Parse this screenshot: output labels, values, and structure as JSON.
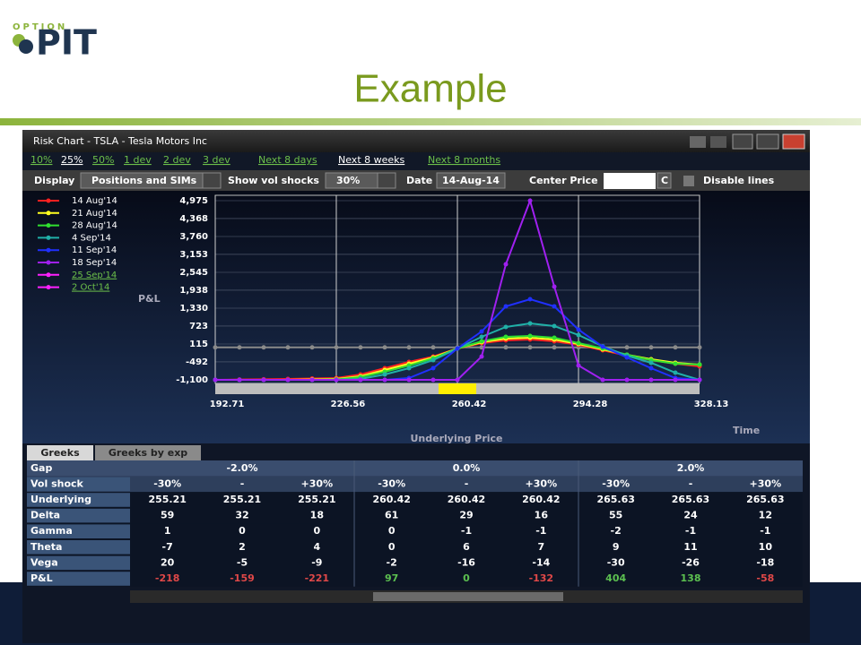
{
  "logo": {
    "small": "OPTION",
    "large": "PIT"
  },
  "slide_title": "Example",
  "window": {
    "title": "Risk Chart - TSLA - Tesla Motors Inc",
    "range_links": {
      "items": [
        "10%",
        "25%",
        "50%",
        "1 dev",
        "2 dev",
        "3 dev"
      ],
      "selected": 1
    },
    "period_links": {
      "items": [
        "Next 8 days",
        "Next 8 weeks",
        "Next 8 months"
      ],
      "selected": 1
    },
    "toolbar": {
      "display_label": "Display",
      "display_value": "Positions and SIMs",
      "vol_label": "Show vol shocks",
      "vol_value": "30%",
      "date_label": "Date",
      "date_value": "14-Aug-14",
      "center_label": "Center Price",
      "center_button": "C",
      "disable_lines": "Disable lines"
    }
  },
  "chart_data": {
    "type": "line",
    "ylabel": "P&L",
    "xlabel": "Underlying Price",
    "time_label": "Time",
    "grid": true,
    "legend": "upper left",
    "x": [
      192.71,
      199.48,
      206.25,
      213.02,
      219.8,
      226.56,
      233.33,
      240.11,
      246.88,
      253.65,
      260.42,
      267.19,
      273.96,
      280.74,
      287.51,
      294.28,
      301.05,
      307.82,
      314.59,
      321.36,
      328.13
    ],
    "xlim": [
      192.71,
      328.13
    ],
    "xticks": [
      192.71,
      226.56,
      260.42,
      294.28,
      328.13
    ],
    "ylim": [
      -1100,
      4975
    ],
    "yticks": [
      {
        "value": -1100,
        "label": "-1,100"
      },
      -492,
      115,
      723,
      {
        "value": 1330,
        "label": "1,330"
      },
      {
        "value": 1938,
        "label": "1,938"
      },
      {
        "value": 2545,
        "label": "2,545"
      },
      {
        "value": 3153,
        "label": "3,153"
      },
      {
        "value": 3760,
        "label": "3,760"
      },
      {
        "value": 4368,
        "label": "4,368"
      },
      {
        "value": 4975,
        "label": "4,975"
      }
    ],
    "series": [
      {
        "color": "#8a8a8a",
        "values": [
          0,
          0,
          0,
          0,
          0,
          0,
          0,
          0,
          0,
          0,
          0,
          0,
          0,
          0,
          0,
          0,
          0,
          0,
          0,
          0,
          0
        ]
      },
      {
        "name": "14 Aug'14",
        "color": "#ff2020",
        "values": [
          -1100,
          -1090,
          -1080,
          -1070,
          -1055,
          -1039,
          -918,
          -705,
          -493,
          -310,
          -37,
          145,
          237,
          267,
          206,
          85,
          -98,
          -280,
          -432,
          -554,
          -644
        ]
      },
      {
        "name": "21 Aug'14",
        "color": "#ffff20",
        "values": [
          -1100,
          -1100,
          -1100,
          -1100,
          -1085,
          -1070,
          -978,
          -766,
          -554,
          -340,
          -37,
          176,
          298,
          328,
          267,
          115,
          -67,
          -250,
          -401,
          -523,
          -584
        ]
      },
      {
        "name": "28 Aug'14",
        "color": "#30e030",
        "values": [
          -1100,
          -1100,
          -1100,
          -1100,
          -1100,
          -1085,
          -1009,
          -827,
          -615,
          -371,
          -37,
          206,
          359,
          389,
          328,
          145,
          -37,
          -250,
          -432,
          -554,
          -584
        ]
      },
      {
        "name": "4 Sep'14",
        "color": "#20b0a8",
        "values": [
          -1100,
          -1100,
          -1100,
          -1100,
          -1100,
          -1100,
          -1070,
          -918,
          -705,
          -432,
          -37,
          358,
          693,
          813,
          723,
          419,
          37,
          -280,
          -523,
          -857,
          -1100
        ]
      },
      {
        "name": "11 Sep'14",
        "color": "#2030ff",
        "values": [
          -1100,
          -1100,
          -1100,
          -1100,
          -1100,
          -1100,
          -1100,
          -1100,
          -1039,
          -705,
          -37,
          540,
          1390,
          1634,
          1390,
          601,
          24,
          -340,
          -705,
          -1039,
          -1100
        ]
      },
      {
        "name": "18 Sep'14",
        "color": "#a020f0",
        "values": [
          -1100,
          -1100,
          -1100,
          -1100,
          -1100,
          -1100,
          -1100,
          -1100,
          -1100,
          -1100,
          -1100,
          -310,
          2818,
          4975,
          2059,
          -614,
          -1100,
          -1100,
          -1100,
          -1100,
          -1100
        ]
      },
      {
        "name": "25 Sep'14",
        "color": "#ff20ff",
        "hidden": true,
        "values": [
          null,
          null,
          null,
          null,
          null,
          null,
          null,
          null,
          null,
          null,
          null,
          null,
          null,
          null,
          null,
          null,
          null,
          null,
          null,
          null,
          null
        ]
      },
      {
        "name": "2 Oct'14",
        "color": "#ff20ff",
        "hidden": true,
        "values": [
          null,
          null,
          null,
          null,
          null,
          null,
          null,
          null,
          null,
          null,
          null,
          null,
          null,
          null,
          null,
          null,
          null,
          null,
          null,
          null,
          null
        ]
      }
    ]
  },
  "table": {
    "tabs": [
      "Greeks",
      "Greeks by exp"
    ],
    "gap_row": {
      "label": "Gap",
      "values": [
        "-2.0%",
        "0.0%",
        "2.0%"
      ]
    },
    "rows": [
      [
        "Vol shock",
        "-30%",
        "-",
        "+30%",
        "-30%",
        "-",
        "+30%",
        "-30%",
        "-",
        "+30%"
      ],
      [
        "Underlying",
        "255.21",
        "255.21",
        "255.21",
        "260.42",
        "260.42",
        "260.42",
        "265.63",
        "265.63",
        "265.63"
      ],
      [
        "Delta",
        "59",
        "32",
        "18",
        "61",
        "29",
        "16",
        "55",
        "24",
        "12"
      ],
      [
        "Gamma",
        "1",
        "0",
        "0",
        "0",
        "-1",
        "-1",
        "-2",
        "-1",
        "-1"
      ],
      [
        "Theta",
        "-7",
        "2",
        "4",
        "0",
        "6",
        "7",
        "9",
        "11",
        "10"
      ],
      [
        "Vega",
        "20",
        "-5",
        "-9",
        "-2",
        "-16",
        "-14",
        "-30",
        "-26",
        "-18"
      ],
      [
        "P&L",
        "-218",
        "-159",
        "-221",
        "97",
        "0",
        "-132",
        "404",
        "138",
        "-58"
      ]
    ]
  }
}
